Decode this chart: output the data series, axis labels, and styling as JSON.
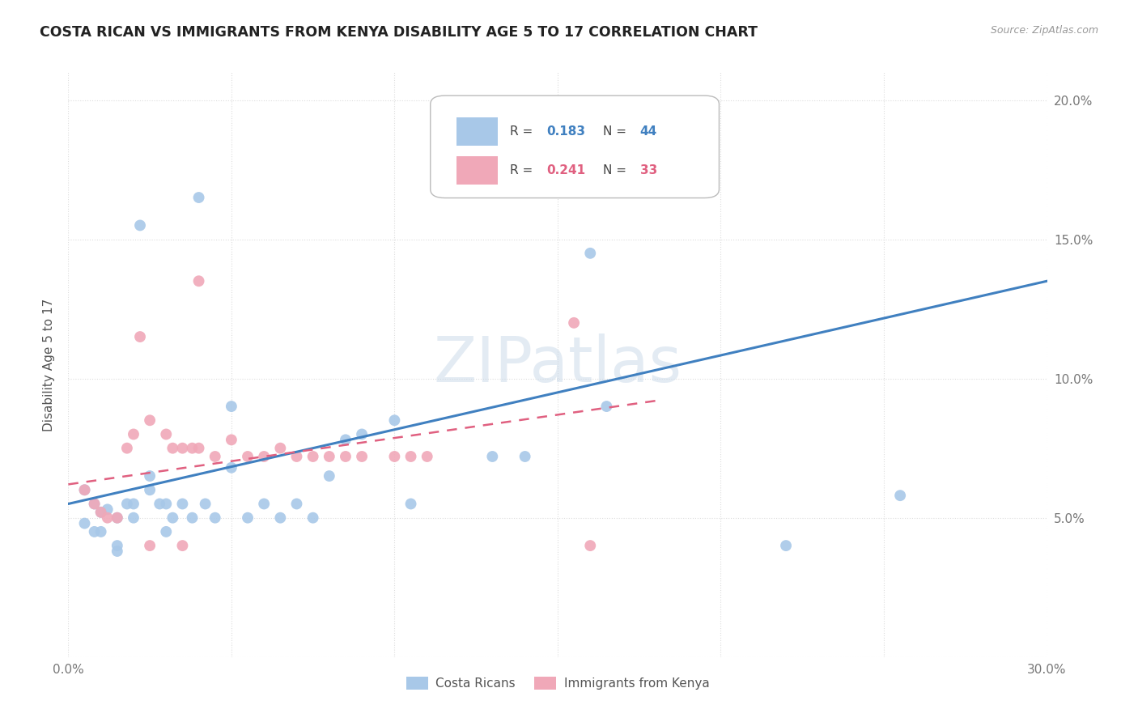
{
  "title": "COSTA RICAN VS IMMIGRANTS FROM KENYA DISABILITY AGE 5 TO 17 CORRELATION CHART",
  "source": "Source: ZipAtlas.com",
  "ylabel": "Disability Age 5 to 17",
  "xlim": [
    0.0,
    0.3
  ],
  "ylim": [
    0.0,
    0.21
  ],
  "xticks": [
    0.0,
    0.05,
    0.1,
    0.15,
    0.2,
    0.25,
    0.3
  ],
  "yticks": [
    0.0,
    0.05,
    0.1,
    0.15,
    0.2
  ],
  "color_blue": "#a8c8e8",
  "color_pink": "#f0a8b8",
  "color_line_blue": "#4080c0",
  "color_line_pink": "#e06080",
  "watermark": "ZIPatlas",
  "blue_scatter_x": [
    0.008,
    0.01,
    0.012,
    0.015,
    0.005,
    0.005,
    0.008,
    0.01,
    0.015,
    0.015,
    0.018,
    0.02,
    0.02,
    0.022,
    0.025,
    0.025,
    0.028,
    0.03,
    0.03,
    0.032,
    0.035,
    0.038,
    0.04,
    0.042,
    0.045,
    0.05,
    0.05,
    0.055,
    0.06,
    0.065,
    0.07,
    0.075,
    0.08,
    0.085,
    0.09,
    0.1,
    0.105,
    0.13,
    0.14,
    0.155,
    0.16,
    0.165,
    0.22,
    0.255
  ],
  "blue_scatter_y": [
    0.055,
    0.052,
    0.053,
    0.05,
    0.06,
    0.048,
    0.045,
    0.045,
    0.04,
    0.038,
    0.055,
    0.05,
    0.055,
    0.155,
    0.065,
    0.06,
    0.055,
    0.055,
    0.045,
    0.05,
    0.055,
    0.05,
    0.165,
    0.055,
    0.05,
    0.068,
    0.09,
    0.05,
    0.055,
    0.05,
    0.055,
    0.05,
    0.065,
    0.078,
    0.08,
    0.085,
    0.055,
    0.072,
    0.072,
    0.17,
    0.145,
    0.09,
    0.04,
    0.058
  ],
  "pink_scatter_x": [
    0.005,
    0.008,
    0.01,
    0.012,
    0.015,
    0.018,
    0.02,
    0.022,
    0.025,
    0.03,
    0.032,
    0.035,
    0.038,
    0.04,
    0.045,
    0.05,
    0.055,
    0.06,
    0.065,
    0.07,
    0.075,
    0.08,
    0.085,
    0.09,
    0.1,
    0.105,
    0.11,
    0.025,
    0.035,
    0.14,
    0.155,
    0.16,
    0.04
  ],
  "pink_scatter_y": [
    0.06,
    0.055,
    0.052,
    0.05,
    0.05,
    0.075,
    0.08,
    0.115,
    0.085,
    0.08,
    0.075,
    0.075,
    0.075,
    0.075,
    0.072,
    0.078,
    0.072,
    0.072,
    0.075,
    0.072,
    0.072,
    0.072,
    0.072,
    0.072,
    0.072,
    0.072,
    0.072,
    0.04,
    0.04,
    0.185,
    0.12,
    0.04,
    0.135
  ],
  "blue_line_x": [
    0.0,
    0.3
  ],
  "blue_line_y": [
    0.055,
    0.135
  ],
  "pink_line_x": [
    0.0,
    0.18
  ],
  "pink_line_y": [
    0.062,
    0.092
  ]
}
